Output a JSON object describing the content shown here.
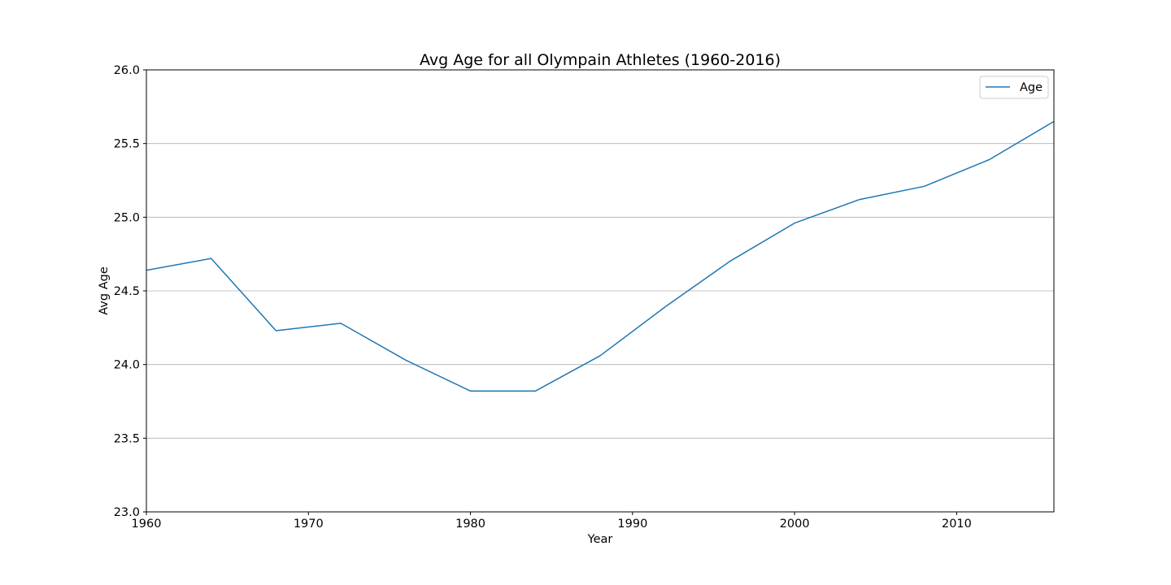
{
  "chart_data": {
    "type": "line",
    "title": "Avg Age for all Olympain Athletes (1960-2016)",
    "xlabel": "Year",
    "ylabel": "Avg Age",
    "xlim": [
      1960,
      2016
    ],
    "ylim": [
      23.0,
      26.0
    ],
    "x_ticks": [
      1960,
      1970,
      1980,
      1990,
      2000,
      2010
    ],
    "x_tick_labels": [
      "1960",
      "1970",
      "1980",
      "1990",
      "2000",
      "2010"
    ],
    "y_ticks": [
      23.0,
      23.5,
      24.0,
      24.5,
      25.0,
      25.5,
      26.0
    ],
    "y_tick_labels": [
      "23.0",
      "23.5",
      "24.0",
      "24.5",
      "25.0",
      "25.5",
      "26.0"
    ],
    "grid": "horizontal",
    "legend_position": "top-right",
    "series": [
      {
        "name": "Age",
        "color": "#1f77b4",
        "x": [
          1960,
          1964,
          1968,
          1972,
          1976,
          1980,
          1984,
          1988,
          1992,
          1996,
          2000,
          2004,
          2008,
          2012,
          2016
        ],
        "y": [
          24.64,
          24.72,
          24.23,
          24.28,
          24.03,
          23.82,
          23.82,
          24.06,
          24.39,
          24.7,
          24.96,
          25.12,
          25.21,
          25.39,
          25.65
        ]
      }
    ]
  }
}
